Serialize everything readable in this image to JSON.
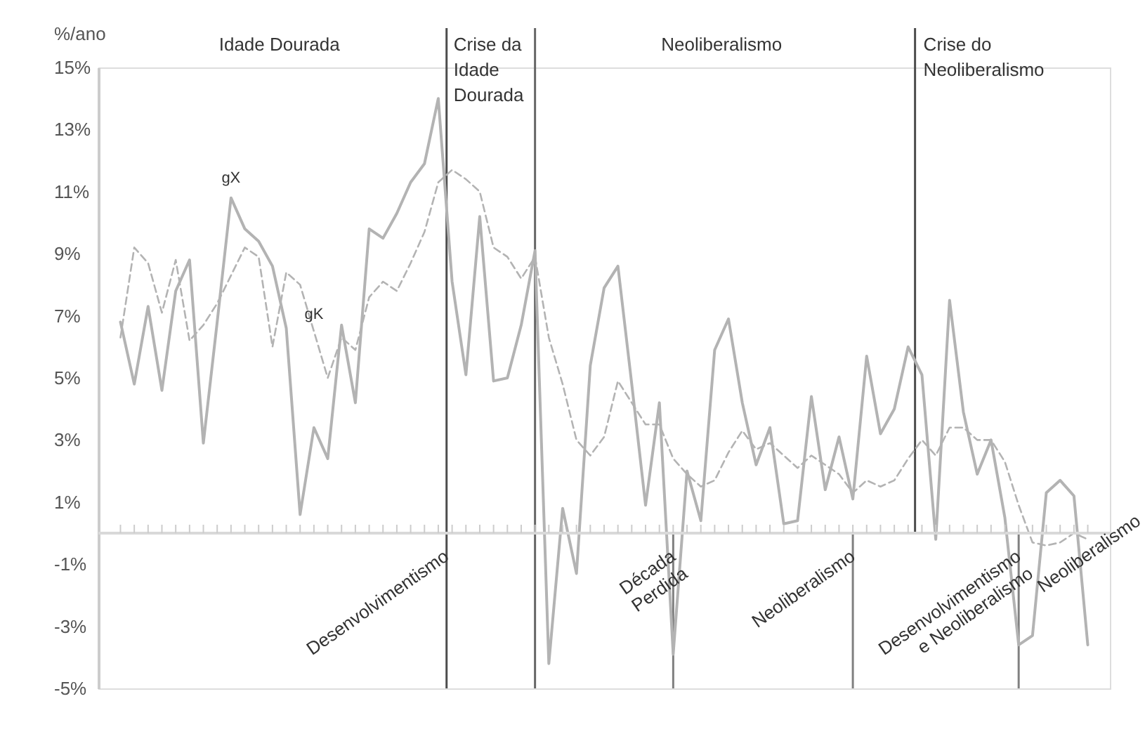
{
  "chart_data": {
    "type": "line",
    "ylabel": "%/ano",
    "categories": [
      null,
      null,
      null,
      null,
      null,
      null,
      null,
      null,
      null,
      null,
      null,
      null,
      null,
      null,
      null,
      null,
      null,
      null,
      null,
      null,
      null,
      null,
      null,
      null,
      null,
      null,
      null,
      null,
      null,
      null,
      null,
      null,
      null,
      null,
      null,
      null,
      null,
      null,
      null,
      null,
      null,
      null,
      null,
      null,
      null,
      null,
      null,
      null,
      null,
      null,
      null,
      null,
      null,
      null,
      null,
      null,
      null,
      null,
      null,
      null,
      null,
      null,
      null,
      null,
      null,
      null,
      null,
      null,
      null,
      null,
      null
    ],
    "series": [
      {
        "name": "gX",
        "color": "#b3b3b3",
        "line_style": "solid",
        "values": [
          6.8,
          4.8,
          7.3,
          4.6,
          7.8,
          8.8,
          2.9,
          6.8,
          10.8,
          9.8,
          9.4,
          8.6,
          6.6,
          0.6,
          3.4,
          2.4,
          6.7,
          4.2,
          9.8,
          9.5,
          10.3,
          11.3,
          11.9,
          14.0,
          8.1,
          5.1,
          10.2,
          4.9,
          5.0,
          6.7,
          9.1,
          -4.2,
          0.8,
          -1.3,
          5.4,
          7.9,
          8.6,
          4.8,
          0.9,
          4.2,
          -3.9,
          2.0,
          0.4,
          5.9,
          6.9,
          4.2,
          2.2,
          3.4,
          0.3,
          0.4,
          4.4,
          1.4,
          3.1,
          1.1,
          5.7,
          3.2,
          4.0,
          6.0,
          5.1,
          -0.2,
          7.5,
          3.9,
          1.9,
          3.0,
          0.5,
          -3.6,
          -3.3,
          1.3,
          1.7,
          1.2,
          -3.6
        ]
      },
      {
        "name": "gK",
        "color": "#b3b3b3",
        "line_style": "dashed",
        "values": [
          6.3,
          9.2,
          8.7,
          7.1,
          8.8,
          6.2,
          6.7,
          7.4,
          8.3,
          9.2,
          8.9,
          6.0,
          8.4,
          8.0,
          6.5,
          5.0,
          6.3,
          5.9,
          7.6,
          8.1,
          7.8,
          8.7,
          9.7,
          11.3,
          11.7,
          11.4,
          11.0,
          9.2,
          8.9,
          8.2,
          8.9,
          6.3,
          4.8,
          3.0,
          2.5,
          3.1,
          4.9,
          4.2,
          3.5,
          3.5,
          2.4,
          1.9,
          1.5,
          1.7,
          2.6,
          3.3,
          2.7,
          2.9,
          2.5,
          2.1,
          2.5,
          2.2,
          1.9,
          1.3,
          1.7,
          1.5,
          1.7,
          2.4,
          3.0,
          2.5,
          3.4,
          3.4,
          3.0,
          3.0,
          2.3,
          0.9,
          -0.3,
          -0.4,
          -0.3,
          0.0,
          -0.2
        ]
      }
    ],
    "ylim": [
      -5,
      15
    ],
    "yticks": [
      {
        "value": -5,
        "label": "-5%"
      },
      {
        "value": -3,
        "label": "-3%"
      },
      {
        "value": -1,
        "label": "-1%"
      },
      {
        "value": 1,
        "label": "1%"
      },
      {
        "value": 3,
        "label": "3%"
      },
      {
        "value": 5,
        "label": "5%"
      },
      {
        "value": 7,
        "label": "7%"
      },
      {
        "value": 9,
        "label": "9%"
      },
      {
        "value": 11,
        "label": "11%"
      },
      {
        "value": 13,
        "label": "13%"
      },
      {
        "value": 15,
        "label": "15%"
      }
    ],
    "annotations": [
      "Idade Dourada",
      "Crise da\nIdade\nDourada",
      "Neoliberalismo",
      "Crise do\nNeoliberalismo",
      "Desenvolvimentismo",
      "Década\nPerdida",
      "Neoliberalismo",
      "Desenvolvimentismo\ne Neoliberalismo",
      "Neoliberalismo"
    ],
    "grid": false,
    "tick_labels": "y"
  }
}
